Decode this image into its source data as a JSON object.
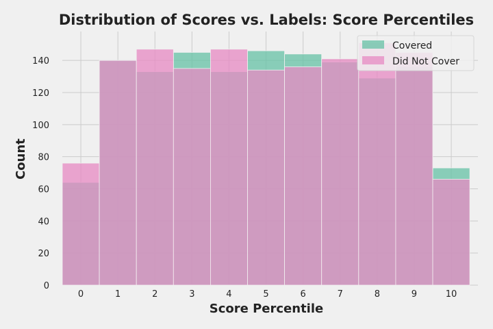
{
  "chart_data": {
    "type": "bar",
    "title": "Distribution of Scores vs. Labels: Score Percentiles",
    "xlabel": "Score Percentile",
    "ylabel": "Count",
    "categories": [
      "0",
      "1",
      "2",
      "3",
      "4",
      "5",
      "6",
      "7",
      "8",
      "9",
      "10"
    ],
    "ylim": [
      0,
      158
    ],
    "yticks": [
      0,
      20,
      40,
      60,
      80,
      100,
      120,
      140
    ],
    "grid": true,
    "legend_position": "top-right",
    "series": [
      {
        "name": "Covered",
        "color": "#66c2a5",
        "values": [
          64,
          140,
          133,
          145,
          133,
          146,
          144,
          139,
          129,
          136,
          73
        ]
      },
      {
        "name": "Did Not Cover",
        "color": "#e78ac3",
        "values": [
          76,
          140,
          147,
          135,
          147,
          134,
          136,
          141,
          151,
          145,
          66
        ]
      }
    ]
  }
}
